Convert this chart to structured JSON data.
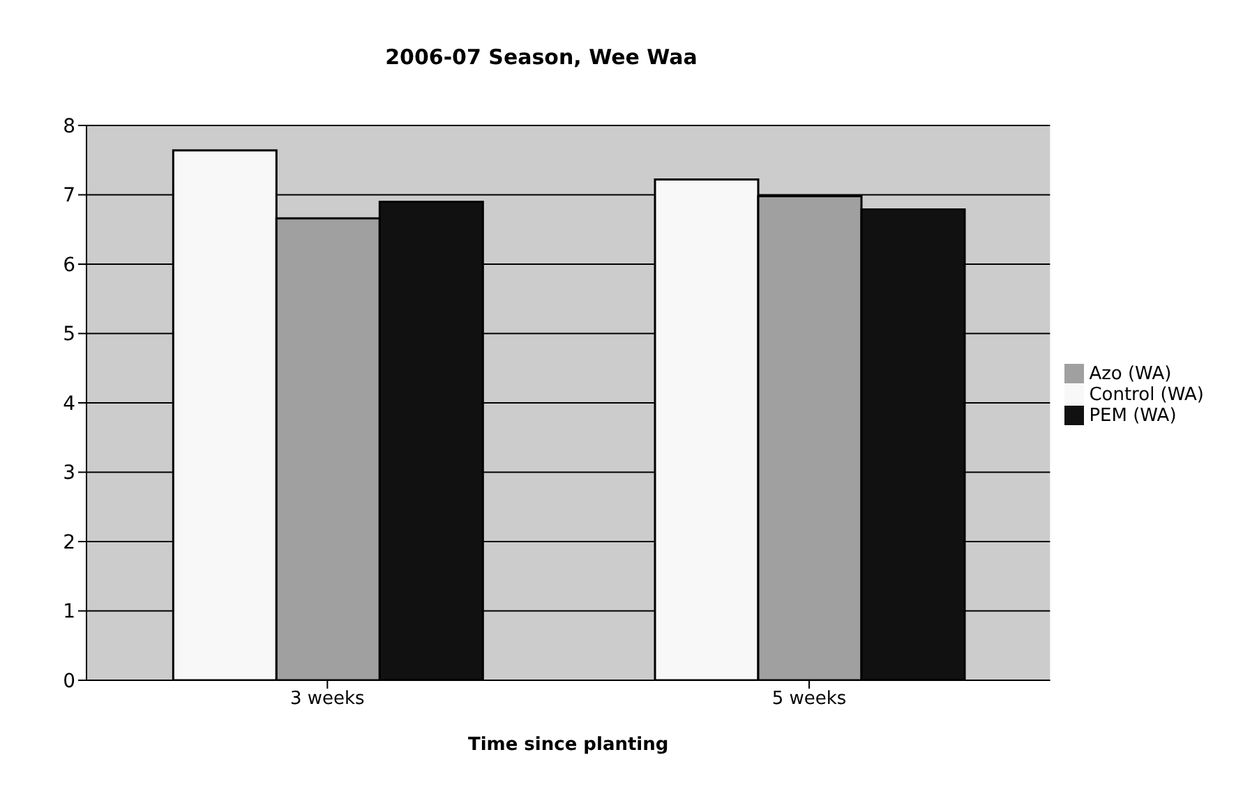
{
  "chart_data": {
    "type": "bar",
    "title": "2006-07 Season, Wee Waa",
    "xlabel": "Time since planting",
    "categories": [
      "3 weeks",
      "5 weeks"
    ],
    "series": [
      {
        "name": "Control (WA)",
        "color": "#f8f8f8",
        "values": [
          7.64,
          7.22
        ]
      },
      {
        "name": "Azo (WA)",
        "color": "#a0a0a0",
        "values": [
          6.66,
          6.98
        ]
      },
      {
        "name": "PEM (WA)",
        "color": "#111111",
        "values": [
          6.9,
          6.79
        ]
      }
    ],
    "ylim": [
      0,
      8
    ],
    "yticks": [
      0,
      1,
      2,
      3,
      4,
      5,
      6,
      7,
      8
    ],
    "grid": "y",
    "legend": "right"
  }
}
